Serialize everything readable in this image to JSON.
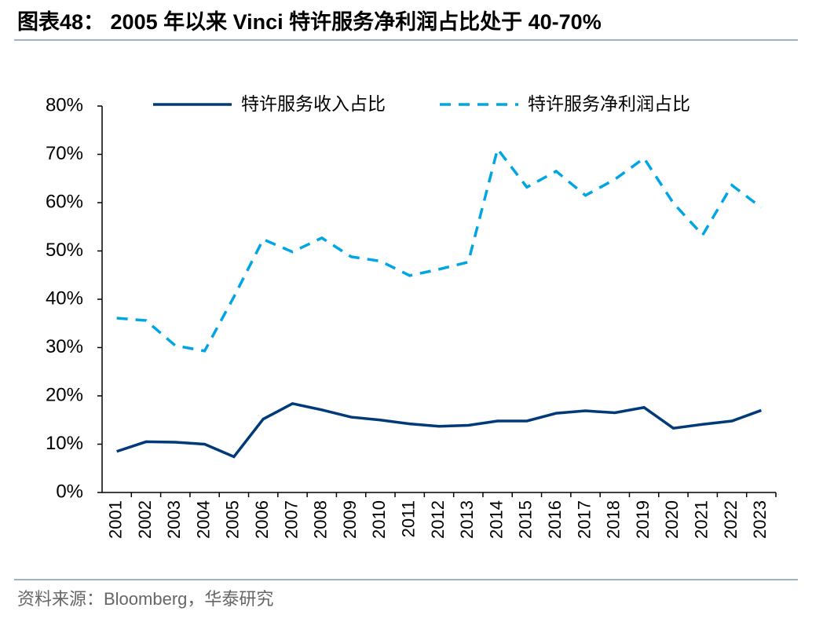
{
  "title": "图表48：  2005 年以来 Vinci 特许服务净利润占比处于 40-70%",
  "source": "资料来源：Bloomberg，华泰研究",
  "chart_data": {
    "type": "line",
    "categories": [
      "2001",
      "2002",
      "2003",
      "2004",
      "2005",
      "2006",
      "2007",
      "2008",
      "2009",
      "2010",
      "2011",
      "2012",
      "2013",
      "2014",
      "2015",
      "2016",
      "2017",
      "2018",
      "2019",
      "2020",
      "2021",
      "2022",
      "2023"
    ],
    "series": [
      {
        "name": "特许服务收入占比",
        "color": "#003a78",
        "dash": false,
        "values": [
          8.5,
          10.5,
          10.4,
          10.0,
          7.4,
          15.2,
          18.4,
          17.1,
          15.6,
          15.0,
          14.2,
          13.7,
          13.9,
          14.8,
          14.8,
          16.4,
          16.9,
          16.5,
          17.6,
          13.3,
          14.1,
          14.8,
          17.0
        ]
      },
      {
        "name": "特许服务净利润占比",
        "color": "#00a6e4",
        "dash": true,
        "values": [
          36.1,
          35.6,
          30.4,
          29.3,
          40.5,
          52.4,
          49.8,
          52.7,
          48.8,
          47.9,
          44.9,
          46.2,
          47.7,
          71.1,
          63.2,
          66.5,
          61.5,
          64.8,
          69.2,
          59.9,
          53.3,
          63.6,
          59.0
        ]
      }
    ],
    "ylim": [
      0,
      80
    ],
    "yticks": [
      {
        "value": 0,
        "label": "0%"
      },
      {
        "value": 10,
        "label": "10%"
      },
      {
        "value": 20,
        "label": "20%"
      },
      {
        "value": 30,
        "label": "30%"
      },
      {
        "value": 40,
        "label": "40%"
      },
      {
        "value": 50,
        "label": "50%"
      },
      {
        "value": 60,
        "label": "60%"
      },
      {
        "value": 70,
        "label": "70%"
      },
      {
        "value": 80,
        "label": "80%"
      }
    ],
    "grid": false,
    "legend": "top"
  }
}
